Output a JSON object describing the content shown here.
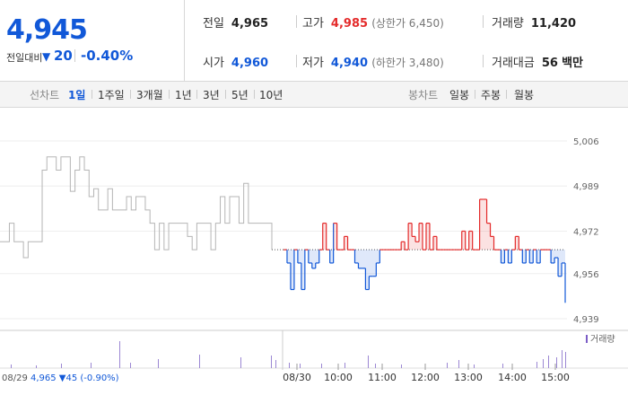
{
  "summary": {
    "price": "4,945",
    "change_label": "전일대비",
    "change_arrow": "▼",
    "change_value": "20",
    "change_pct": "-0.40%",
    "prev_close_label": "전일",
    "prev_close": "4,965",
    "high_label": "고가",
    "high": "4,985",
    "high_limit": "(상한가 6,450)",
    "volume_label": "거래량",
    "volume": "11,420",
    "open_label": "시가",
    "open": "4,960",
    "low_label": "저가",
    "low": "4,940",
    "low_limit": "(하한가 3,480)",
    "amount_label": "거래대금",
    "amount": "56",
    "amount_unit": "백만"
  },
  "periods": {
    "label": "선차트",
    "items": [
      "1일",
      "1주일",
      "3개월",
      "1년",
      "3년",
      "5년",
      "10년"
    ],
    "selected": "1일",
    "candle_label": "봉차트",
    "candle_items": [
      "일봉",
      "주봉",
      "월봉"
    ]
  },
  "chart_data": {
    "type": "line",
    "y_ticks": [
      "5,006",
      "4,989",
      "4,972",
      "4,956",
      "4,939"
    ],
    "y_range": [
      4939,
      5006
    ],
    "baseline": 4965,
    "x_ticks": [
      "08/30",
      "10:00",
      "11:00",
      "12:00",
      "13:00",
      "14:00",
      "15:00"
    ],
    "volume_legend": "거래량",
    "prev_day_label": "08/29",
    "prev_day_value": "4,965 ▼45 (-0.90%)",
    "prev_day_series": [
      4968,
      4968,
      4975,
      4968,
      4968,
      4962,
      4968,
      4968,
      4968,
      4995,
      5000,
      5000,
      4995,
      5000,
      5000,
      4987,
      4995,
      5000,
      4995,
      4985,
      4988,
      4980,
      4980,
      4988,
      4980,
      4980,
      4980,
      4985,
      4980,
      4985,
      4985,
      4980,
      4975,
      4965,
      4975,
      4965,
      4975,
      4975,
      4975,
      4975,
      4970,
      4965,
      4975,
      4975,
      4975,
      4965,
      4975,
      4985,
      4975,
      4985,
      4985,
      4975,
      4990,
      4975,
      4975,
      4975,
      4975,
      4975,
      4965
    ],
    "today_series": [
      4965,
      4960,
      4950,
      4965,
      4960,
      4950,
      4965,
      4960,
      4958,
      4960,
      4965,
      4975,
      4965,
      4960,
      4975,
      4965,
      4965,
      4970,
      4965,
      4965,
      4960,
      4958,
      4958,
      4950,
      4955,
      4955,
      4960,
      4965,
      4965,
      4965,
      4965,
      4965,
      4965,
      4968,
      4965,
      4975,
      4970,
      4968,
      4975,
      4965,
      4975,
      4965,
      4970,
      4965,
      4965,
      4965,
      4965,
      4965,
      4965,
      4965,
      4972,
      4965,
      4972,
      4965,
      4965,
      4984,
      4984,
      4975,
      4970,
      4965,
      4965,
      4960,
      4965,
      4960,
      4965,
      4970,
      4965,
      4960,
      4965,
      4960,
      4965,
      4960,
      4965,
      4965,
      4965,
      4960,
      4962,
      4955,
      4960,
      4945
    ]
  }
}
